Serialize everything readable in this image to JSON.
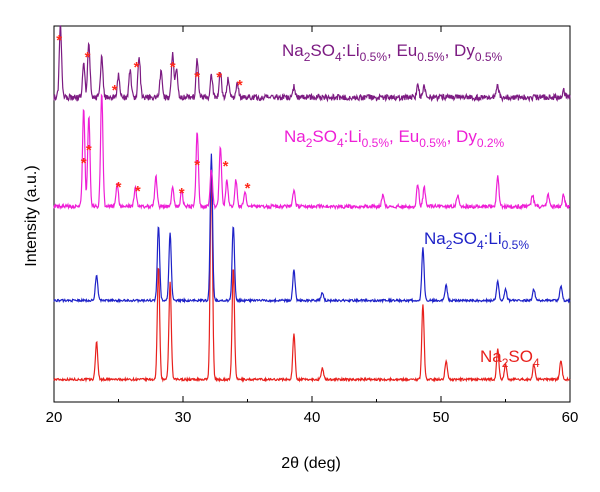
{
  "chart_data": {
    "type": "line",
    "title": "",
    "xlabel": "2θ (deg)",
    "ylabel": "Intensity (a.u.)",
    "xlim": [
      20,
      60
    ],
    "xticks": [
      20,
      30,
      40,
      50,
      60
    ],
    "y_tick_labels": false,
    "grid": false,
    "legend": "inline labels above each trace",
    "series": [
      {
        "name": "Na2SO4",
        "label_main": "Na",
        "label_parts": [
          {
            "t": "Na",
            "sub": false
          },
          {
            "t": "2",
            "sub": true
          },
          {
            "t": "SO",
            "sub": false
          },
          {
            "t": "4",
            "sub": true
          }
        ],
        "color": "#e8211d",
        "baseline_level": 0.06,
        "peaks": [
          [
            23.3,
            0.1
          ],
          [
            28.1,
            0.3
          ],
          [
            29.0,
            0.26
          ],
          [
            32.2,
            0.56
          ],
          [
            33.9,
            0.3
          ],
          [
            38.6,
            0.12
          ],
          [
            40.8,
            0.03
          ],
          [
            48.6,
            0.2
          ],
          [
            50.4,
            0.05
          ],
          [
            54.4,
            0.08
          ],
          [
            55.0,
            0.04
          ],
          [
            57.2,
            0.04
          ],
          [
            59.3,
            0.05
          ]
        ]
      },
      {
        "name": "Na2SO4:Li0.5%",
        "label_parts": [
          {
            "t": "Na",
            "sub": false
          },
          {
            "t": "2",
            "sub": true
          },
          {
            "t": "SO",
            "sub": false
          },
          {
            "t": "4",
            "sub": true
          },
          {
            "t": ":Li",
            "sub": false
          },
          {
            "t": "0.5%",
            "sub": true
          }
        ],
        "color": "#1e22c8",
        "baseline_level": 0.27,
        "peaks": [
          [
            23.3,
            0.07
          ],
          [
            28.1,
            0.2
          ],
          [
            29.0,
            0.18
          ],
          [
            32.2,
            0.39
          ],
          [
            33.9,
            0.2
          ],
          [
            38.6,
            0.08
          ],
          [
            40.8,
            0.02
          ],
          [
            48.6,
            0.14
          ],
          [
            50.4,
            0.04
          ],
          [
            54.4,
            0.05
          ],
          [
            55.0,
            0.03
          ],
          [
            57.2,
            0.03
          ],
          [
            59.3,
            0.04
          ]
        ]
      },
      {
        "name": "Na2SO4:Li0.5%, Eu0.5%, Dy0.2%",
        "label_parts": [
          {
            "t": "Na",
            "sub": false
          },
          {
            "t": "2",
            "sub": true
          },
          {
            "t": "SO",
            "sub": false
          },
          {
            "t": "4",
            "sub": true
          },
          {
            "t": ":Li",
            "sub": false
          },
          {
            "t": "0.5%",
            "sub": true
          },
          {
            "t": ", Eu",
            "sub": false
          },
          {
            "t": "0.5%",
            "sub": true
          },
          {
            "t": ", Dy",
            "sub": false
          },
          {
            "t": "0.2%",
            "sub": true
          }
        ],
        "color": "#ee1fd6",
        "baseline_level": 0.52,
        "peaks": [
          [
            22.3,
            0.26
          ],
          [
            22.7,
            0.24
          ],
          [
            23.7,
            0.3
          ],
          [
            24.9,
            0.06
          ],
          [
            26.3,
            0.05
          ],
          [
            27.9,
            0.08
          ],
          [
            29.2,
            0.05
          ],
          [
            29.9,
            0.04
          ],
          [
            31.1,
            0.2
          ],
          [
            32.2,
            0.1
          ],
          [
            32.9,
            0.16
          ],
          [
            33.4,
            0.07
          ],
          [
            34.1,
            0.07
          ],
          [
            34.8,
            0.04
          ],
          [
            38.6,
            0.04
          ],
          [
            45.5,
            0.03
          ],
          [
            48.2,
            0.06
          ],
          [
            48.7,
            0.05
          ],
          [
            51.3,
            0.03
          ],
          [
            54.4,
            0.08
          ],
          [
            57.1,
            0.03
          ],
          [
            58.3,
            0.03
          ],
          [
            59.5,
            0.03
          ]
        ]
      },
      {
        "name": "Na2SO4:Li0.5%, Eu0.5%, Dy0.5%",
        "label_parts": [
          {
            "t": "Na",
            "sub": false
          },
          {
            "t": "2",
            "sub": true
          },
          {
            "t": "SO",
            "sub": false
          },
          {
            "t": "4",
            "sub": true
          },
          {
            "t": ":Li",
            "sub": false
          },
          {
            "t": "0.5%",
            "sub": true
          },
          {
            "t": ", Eu",
            "sub": false
          },
          {
            "t": "0.5%",
            "sub": true
          },
          {
            "t": ", Dy",
            "sub": false
          },
          {
            "t": "0.5%",
            "sub": true
          }
        ],
        "color": "#7c1b82",
        "baseline_level": 0.81,
        "peaks": [
          [
            20.5,
            0.19
          ],
          [
            22.3,
            0.09
          ],
          [
            22.7,
            0.15
          ],
          [
            23.7,
            0.11
          ],
          [
            25.0,
            0.06
          ],
          [
            25.9,
            0.07
          ],
          [
            26.6,
            0.11
          ],
          [
            28.3,
            0.07
          ],
          [
            29.2,
            0.12
          ],
          [
            29.5,
            0.07
          ],
          [
            31.1,
            0.1
          ],
          [
            32.2,
            0.06
          ],
          [
            32.9,
            0.07
          ],
          [
            33.5,
            0.05
          ],
          [
            34.2,
            0.04
          ],
          [
            38.6,
            0.03
          ],
          [
            48.2,
            0.03
          ],
          [
            48.7,
            0.03
          ],
          [
            54.4,
            0.03
          ],
          [
            59.5,
            0.02
          ]
        ]
      }
    ],
    "annotations": {
      "marker": "*",
      "color": "#ff2a1a",
      "series_3_x": [
        22.3,
        22.7,
        25.0,
        26.5,
        29.9,
        31.1,
        33.3,
        35.0
      ],
      "series_4_x": [
        20.4,
        22.6,
        24.7,
        26.4,
        29.2,
        31.1,
        32.8,
        34.4
      ]
    }
  }
}
